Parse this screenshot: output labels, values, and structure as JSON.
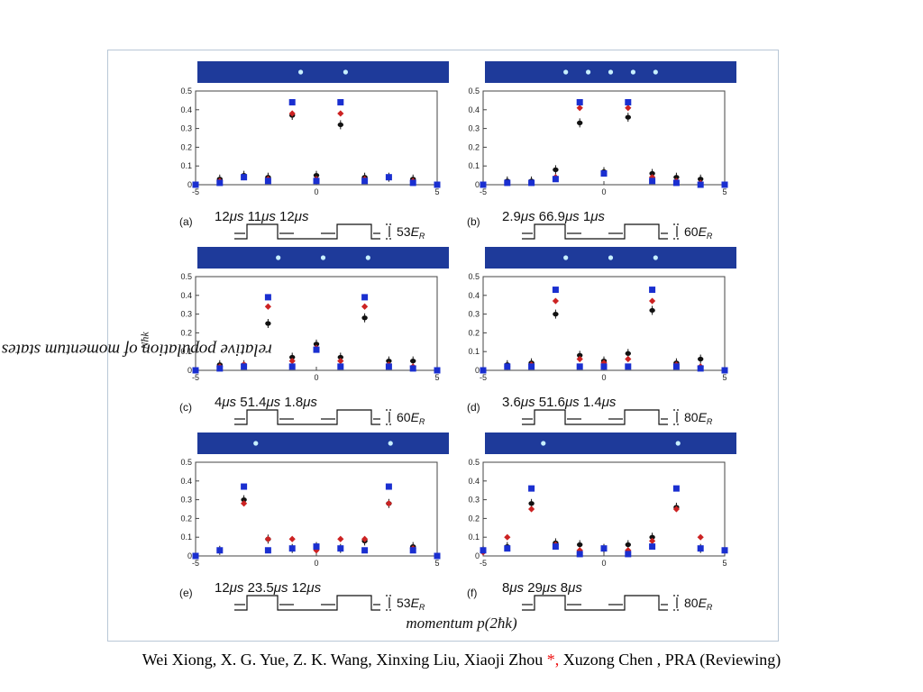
{
  "figure": {
    "y_axis_label": "relative population of momentum states P",
    "y_axis_label_sub": "Nħk",
    "x_axis_label": "momentum p(2ħk)"
  },
  "footer": {
    "authors_before": "Wei Xiong, X. G. Yue, Z. K. Wang, Xinxing Liu, Xiaoji Zhou ",
    "star": "*,",
    "authors_after": "  Xuzong Chen , PRA (Reviewing)",
    "star_color": "#e11111"
  },
  "colors": {
    "black_series": "#111111",
    "red_series": "#cc2222",
    "blue_series": "#1a2fd0",
    "absorption_background": "#1e3a9a",
    "absorption_spot": "#c8f0ff"
  },
  "chart_data": [
    {
      "type": "scatter",
      "label": "(a)",
      "xlim": [
        -5,
        5
      ],
      "ylim": [
        0,
        0.5
      ],
      "xticks": [
        -5,
        0,
        5
      ],
      "yticks": [
        0,
        0.1,
        0.2,
        0.3,
        0.4,
        0.5
      ],
      "x": [
        -5,
        -4,
        -3,
        -2,
        -1,
        0,
        1,
        2,
        3,
        4,
        5
      ],
      "series": [
        {
          "marker": "circle",
          "values": [
            null,
            0.03,
            0.05,
            0.04,
            0.37,
            0.05,
            0.32,
            0.04,
            0.04,
            0.03,
            null
          ]
        },
        {
          "marker": "diamond",
          "values": [
            null,
            0.02,
            0.04,
            0.03,
            0.38,
            0.03,
            0.38,
            0.03,
            0.04,
            0.02,
            null
          ]
        },
        {
          "marker": "square",
          "values": [
            0.0,
            0.01,
            0.04,
            0.02,
            0.44,
            0.02,
            0.44,
            0.02,
            0.04,
            0.01,
            0.0
          ]
        }
      ],
      "pulse": {
        "t1": "12",
        "gap": "11",
        "t2": "12",
        "unit": "μs",
        "energy": "53",
        "energy_unit": "E",
        "energy_sub": "R"
      },
      "absorption_spots": [
        -1,
        1
      ]
    },
    {
      "type": "scatter",
      "label": "(b)",
      "xlim": [
        -5,
        5
      ],
      "ylim": [
        0,
        0.5
      ],
      "xticks": [
        -5,
        0,
        5
      ],
      "yticks": [
        0,
        0.1,
        0.2,
        0.3,
        0.4,
        0.5
      ],
      "x": [
        -5,
        -4,
        -3,
        -2,
        -1,
        0,
        1,
        2,
        3,
        4,
        5
      ],
      "series": [
        {
          "marker": "circle",
          "values": [
            null,
            0.02,
            0.02,
            0.08,
            0.33,
            0.07,
            0.36,
            0.06,
            0.04,
            0.03,
            null
          ]
        },
        {
          "marker": "diamond",
          "values": [
            null,
            0.01,
            0.01,
            0.04,
            0.41,
            0.06,
            0.41,
            0.04,
            0.02,
            0.01,
            null
          ]
        },
        {
          "marker": "square",
          "values": [
            0.0,
            0.01,
            0.01,
            0.03,
            0.44,
            0.06,
            0.44,
            0.02,
            0.01,
            0.0,
            0.0
          ]
        }
      ],
      "pulse": {
        "t1": "2.9",
        "gap": "66.9",
        "t2": "1",
        "unit": "μs",
        "energy": "60",
        "energy_unit": "E",
        "energy_sub": "R"
      },
      "absorption_spots": [
        -2,
        -1,
        0,
        1,
        2
      ]
    },
    {
      "type": "scatter",
      "label": "(c)",
      "xlim": [
        -5,
        5
      ],
      "ylim": [
        0,
        0.5
      ],
      "xticks": [
        -5,
        0,
        5
      ],
      "yticks": [
        0,
        0.1,
        0.2,
        0.3,
        0.4,
        0.5
      ],
      "x": [
        -5,
        -4,
        -3,
        -2,
        -1,
        0,
        1,
        2,
        3,
        4,
        5
      ],
      "series": [
        {
          "marker": "circle",
          "values": [
            null,
            0.03,
            0.03,
            0.25,
            0.07,
            0.14,
            0.07,
            0.28,
            0.05,
            0.05,
            null
          ]
        },
        {
          "marker": "diamond",
          "values": [
            null,
            0.02,
            0.03,
            0.34,
            0.05,
            0.12,
            0.05,
            0.34,
            0.03,
            0.02,
            null
          ]
        },
        {
          "marker": "square",
          "values": [
            0.0,
            0.01,
            0.02,
            0.39,
            0.02,
            0.11,
            0.02,
            0.39,
            0.02,
            0.01,
            0.0
          ]
        }
      ],
      "pulse": {
        "t1": "4",
        "gap": "51.4",
        "t2": "1.8",
        "unit": "μs",
        "energy": "60",
        "energy_unit": "E",
        "energy_sub": "R"
      },
      "absorption_spots": [
        -2,
        0,
        2
      ]
    },
    {
      "type": "scatter",
      "label": "(d)",
      "xlim": [
        -5,
        5
      ],
      "ylim": [
        0,
        0.5
      ],
      "xticks": [
        -5,
        0,
        5
      ],
      "yticks": [
        0,
        0.1,
        0.2,
        0.3,
        0.4,
        0.5
      ],
      "x": [
        -5,
        -4,
        -3,
        -2,
        -1,
        0,
        1,
        2,
        3,
        4,
        5
      ],
      "series": [
        {
          "marker": "circle",
          "values": [
            null,
            0.03,
            0.04,
            0.3,
            0.08,
            0.05,
            0.09,
            0.32,
            0.04,
            0.06,
            null
          ]
        },
        {
          "marker": "diamond",
          "values": [
            null,
            0.02,
            0.03,
            0.37,
            0.06,
            0.04,
            0.06,
            0.37,
            0.03,
            0.02,
            null
          ]
        },
        {
          "marker": "square",
          "values": [
            0.0,
            0.02,
            0.02,
            0.43,
            0.02,
            0.02,
            0.02,
            0.43,
            0.02,
            0.01,
            0.0
          ]
        }
      ],
      "pulse": {
        "t1": "3.6",
        "gap": "51.6",
        "t2": "1.4",
        "unit": "μs",
        "energy": "80",
        "energy_unit": "E",
        "energy_sub": "R"
      },
      "absorption_spots": [
        -2,
        0,
        2
      ]
    },
    {
      "type": "scatter",
      "label": "(e)",
      "xlim": [
        -5,
        5
      ],
      "ylim": [
        0,
        0.5
      ],
      "xticks": [
        -5,
        0,
        5
      ],
      "yticks": [
        0,
        0.1,
        0.2,
        0.3,
        0.4,
        0.5
      ],
      "x": [
        -5,
        -4,
        -3,
        -2,
        -1,
        0,
        1,
        2,
        3,
        4,
        5
      ],
      "series": [
        {
          "marker": "circle",
          "values": [
            null,
            0.03,
            0.3,
            0.09,
            0.04,
            0.05,
            0.04,
            0.08,
            0.28,
            0.05,
            null
          ]
        },
        {
          "marker": "diamond",
          "values": [
            null,
            0.03,
            0.28,
            0.09,
            0.09,
            0.03,
            0.09,
            0.09,
            0.28,
            0.04,
            null
          ]
        },
        {
          "marker": "square",
          "values": [
            0.0,
            0.03,
            0.37,
            0.03,
            0.04,
            0.05,
            0.04,
            0.03,
            0.37,
            0.03,
            0.0
          ]
        }
      ],
      "pulse": {
        "t1": "12",
        "gap": "23.5",
        "t2": "12",
        "unit": "μs",
        "energy": "53",
        "energy_unit": "E",
        "energy_sub": "R"
      },
      "absorption_spots": [
        -3,
        3
      ]
    },
    {
      "type": "scatter",
      "label": "(f)",
      "xlim": [
        -5,
        5
      ],
      "ylim": [
        0,
        0.5
      ],
      "xticks": [
        -5,
        0,
        5
      ],
      "yticks": [
        0,
        0.1,
        0.2,
        0.3,
        0.4,
        0.5
      ],
      "x": [
        -5,
        -4,
        -3,
        -2,
        -1,
        0,
        1,
        2,
        3,
        4,
        5
      ],
      "series": [
        {
          "marker": "circle",
          "values": [
            0.03,
            0.05,
            0.28,
            0.07,
            0.06,
            0.04,
            0.06,
            0.1,
            0.26,
            0.04,
            null
          ]
        },
        {
          "marker": "diamond",
          "values": [
            0.02,
            0.1,
            0.25,
            0.06,
            0.03,
            0.04,
            0.03,
            0.08,
            0.25,
            0.1,
            null
          ]
        },
        {
          "marker": "square",
          "values": [
            0.03,
            0.04,
            0.36,
            0.05,
            0.01,
            0.04,
            0.01,
            0.05,
            0.36,
            0.04,
            0.03
          ]
        }
      ],
      "pulse": {
        "t1": "8",
        "gap": "29",
        "t2": "8",
        "unit": "μs",
        "energy": "80",
        "energy_unit": "E",
        "energy_sub": "R"
      },
      "absorption_spots": [
        -3,
        3
      ]
    }
  ]
}
